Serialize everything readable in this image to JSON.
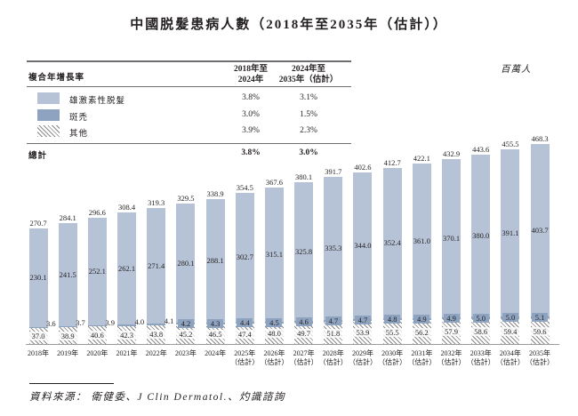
{
  "title": "中國脱髮患病人數（2018年至2035年（估計））",
  "unit_label": "百萬人",
  "cagr_table": {
    "header": {
      "label": "複合年增長率",
      "col1": {
        "line1": "2018年至",
        "line2": "2024年"
      },
      "col2": {
        "line1": "2024年至",
        "line2": "2035年（估計）"
      }
    },
    "rows": [
      {
        "swatch": "androgenetic-swatch",
        "label": "雄激素性脱髮",
        "col1": "3.8%",
        "col2": "3.1%"
      },
      {
        "swatch": "alopecia-areata-swatch",
        "label": "斑禿",
        "col1": "3.0%",
        "col2": "1.5%"
      },
      {
        "swatch": "other-swatch",
        "label": "其他",
        "col1": "3.9%",
        "col2": "2.3%"
      }
    ],
    "total": {
      "label": "總計",
      "col1": "3.8%",
      "col2": "3.0%"
    }
  },
  "chart_data": {
    "type": "bar",
    "stacked": true,
    "unit": "百萬人",
    "legend_position": "top-left-table",
    "grid": false,
    "value_axis": "hidden",
    "categories": [
      {
        "year": "2018年",
        "note": ""
      },
      {
        "year": "2019年",
        "note": ""
      },
      {
        "year": "2020年",
        "note": ""
      },
      {
        "year": "2021年",
        "note": ""
      },
      {
        "year": "2022年",
        "note": ""
      },
      {
        "year": "2023年",
        "note": ""
      },
      {
        "year": "2024年",
        "note": ""
      },
      {
        "year": "2025年",
        "note": "（估計）"
      },
      {
        "year": "2026年",
        "note": "（估計）"
      },
      {
        "year": "2027年",
        "note": "（估計）"
      },
      {
        "year": "2028年",
        "note": "（估計）"
      },
      {
        "year": "2029年",
        "note": "（估計）"
      },
      {
        "year": "2030年",
        "note": "（估計）"
      },
      {
        "year": "2031年",
        "note": "（估計）"
      },
      {
        "year": "2032年",
        "note": "（估計）"
      },
      {
        "year": "2033年",
        "note": "（估計）"
      },
      {
        "year": "2034年",
        "note": "（估計）"
      },
      {
        "year": "2035年",
        "note": "（估計）"
      }
    ],
    "series": [
      {
        "name": "雄激素性脱髮",
        "color": "#b6c3d6",
        "values": [
          "230.1",
          "241.5",
          "252.1",
          "262.1",
          "271.4",
          "280.1",
          "288.1",
          "302.7",
          "315.1",
          "325.8",
          "335.3",
          "344.0",
          "352.4",
          "361.0",
          "370.1",
          "380.0",
          "391.1",
          "403.7"
        ]
      },
      {
        "name": "斑禿",
        "color": "#8da3bf",
        "values": [
          "3.6",
          "3.7",
          "3.9",
          "4.0",
          "4.1",
          "4.2",
          "4.3",
          "4.4",
          "4.5",
          "4.6",
          "4.7",
          "4.7",
          "4.8",
          "4.9",
          "4.9",
          "5.0",
          "5.0",
          "5.1"
        ]
      },
      {
        "name": "其他",
        "pattern": "diagonal-hatch",
        "values": [
          "37.0",
          "38.9",
          "40.6",
          "42.3",
          "43.8",
          "45.2",
          "46.5",
          "47.4",
          "48.0",
          "49.7",
          "51.8",
          "53.9",
          "55.5",
          "56.2",
          "57.9",
          "58.6",
          "59.4",
          "59.6"
        ]
      }
    ],
    "totals": [
      "270.7",
      "284.1",
      "296.6",
      "308.4",
      "319.3",
      "329.5",
      "338.9",
      "354.5",
      "367.6",
      "380.1",
      "391.7",
      "402.6",
      "412.7",
      "422.1",
      "432.9",
      "443.6",
      "455.5",
      "468.3"
    ]
  },
  "source": "資料來源： 衛健委、J Clin Dermatol.、灼識諮詢"
}
